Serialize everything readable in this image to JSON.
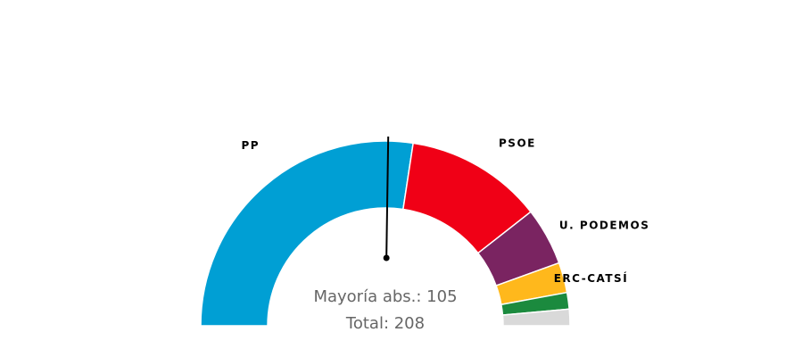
{
  "chart_data": {
    "type": "pie",
    "layout": "parliament-semicircle",
    "parties": [
      {
        "name": "PP",
        "seats": 114,
        "color": "#009fd4",
        "label": "PP"
      },
      {
        "name": "PSOE",
        "seats": 50,
        "color": "#f00016",
        "label": "PSOE"
      },
      {
        "name": "U. PODEMOS",
        "seats": 21,
        "color": "#7a2461",
        "label": "U. PODEMOS"
      },
      {
        "name": "ERC-CATSÍ",
        "seats": 11,
        "color": "#ffb81c",
        "label": "ERC-CATSÍ"
      },
      {
        "name": "",
        "seats": 6,
        "color": "#1b8a3e",
        "label": ""
      },
      {
        "name": "",
        "seats": 6,
        "color": "#d9d9d9",
        "label": ""
      }
    ],
    "majority_seats": 105,
    "total_seats": 208,
    "majority_text": "Mayoría abs.: 105",
    "total_text": "Total: 208"
  }
}
